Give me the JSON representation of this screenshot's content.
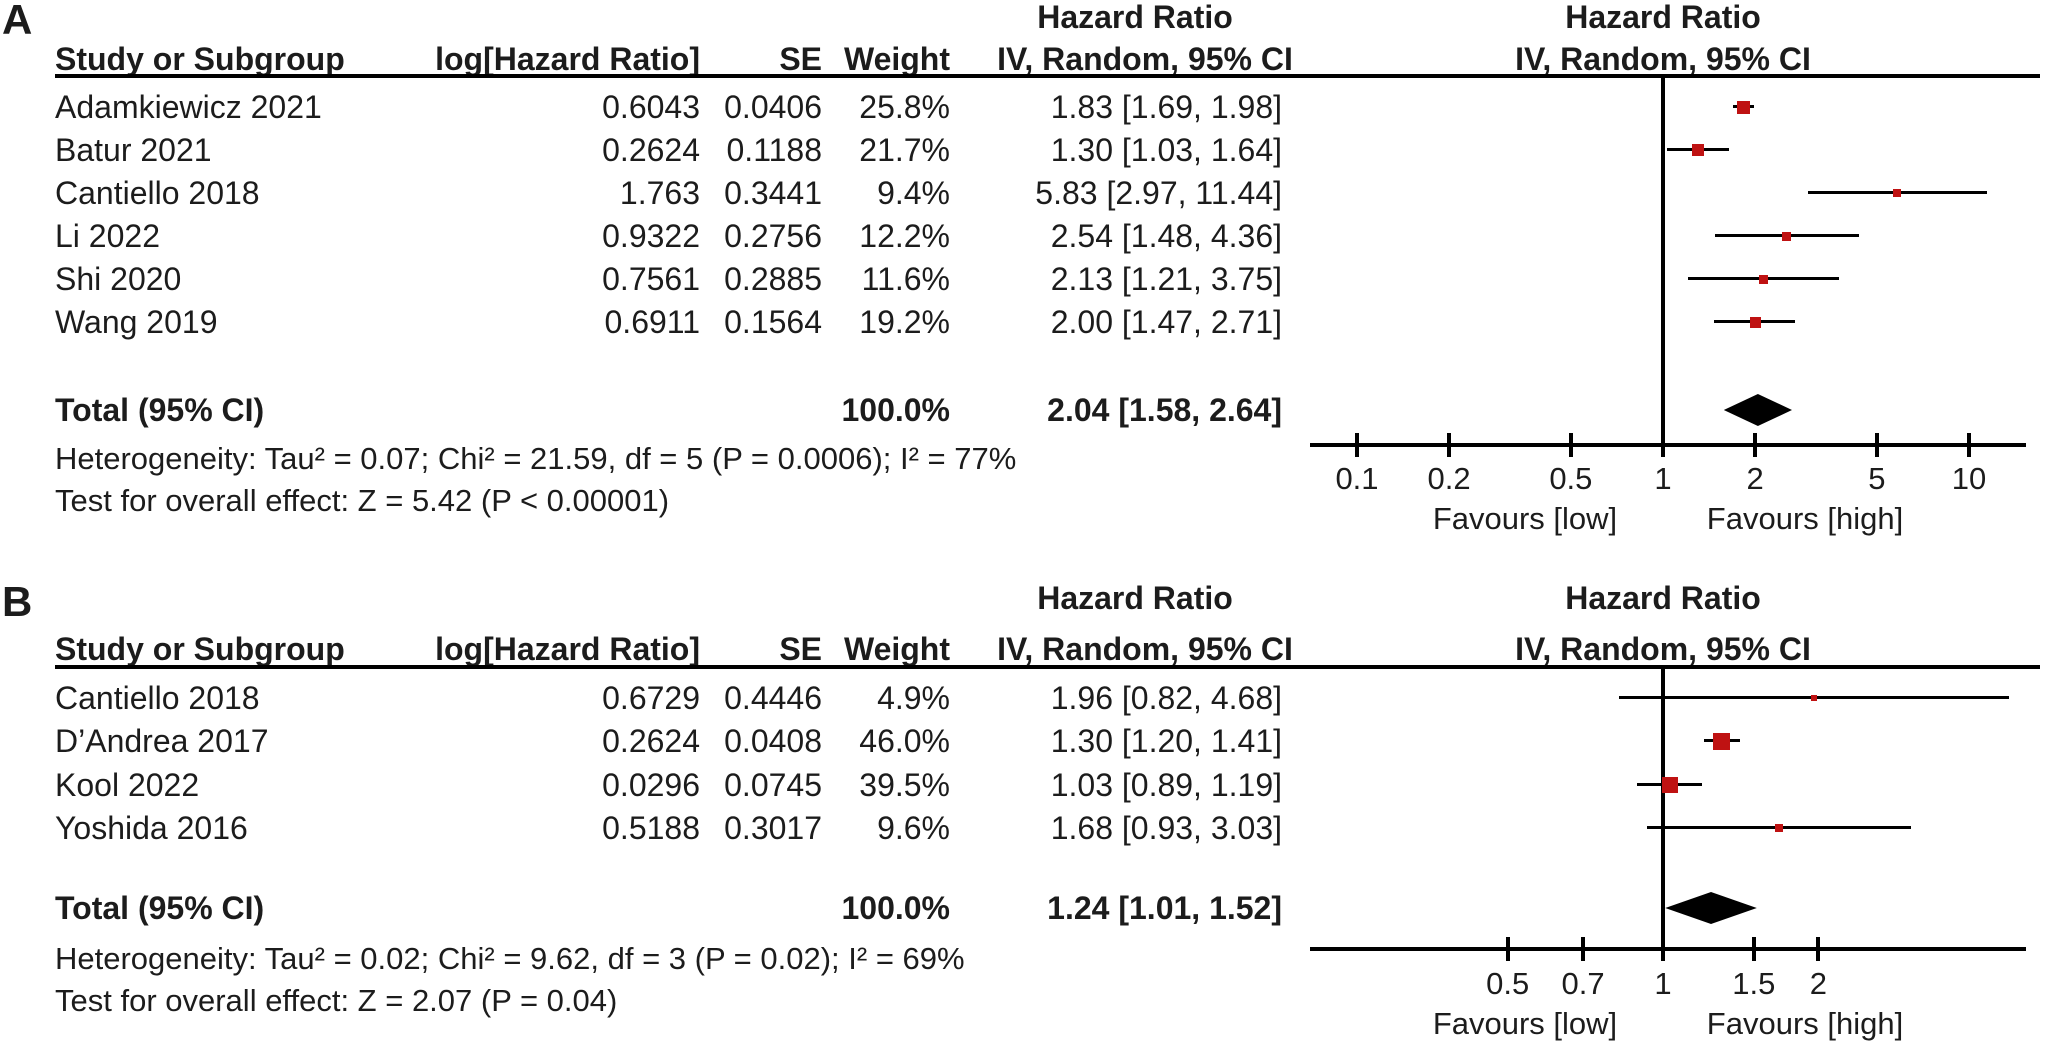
{
  "chart_data": [
    {
      "type": "scatter",
      "subtype": "forest-plot",
      "panel_label": "A",
      "header_hazard_ratio": "Hazard Ratio",
      "columns": {
        "study": "Study or Subgroup",
        "loghr": "log[Hazard Ratio]",
        "se": "SE",
        "weight": "Weight",
        "ci": "IV, Random, 95% CI"
      },
      "x_scale": "log",
      "axis_ticks": [
        0.1,
        0.2,
        0.5,
        1,
        2,
        5,
        10
      ],
      "favours_left": "Favours [low]",
      "favours_right": "Favours [high]",
      "marker_color": "#bf1212",
      "studies": [
        {
          "study": "Adamkiewicz 2021",
          "loghr": "0.6043",
          "se": "0.0406",
          "weight": "25.8%",
          "weight_val": 25.8,
          "ci_text": "1.83 [1.69, 1.98]",
          "hr": 1.83,
          "lo": 1.69,
          "hi": 1.98
        },
        {
          "study": "Batur 2021",
          "loghr": "0.2624",
          "se": "0.1188",
          "weight": "21.7%",
          "weight_val": 21.7,
          "ci_text": "1.30 [1.03, 1.64]",
          "hr": 1.3,
          "lo": 1.03,
          "hi": 1.64
        },
        {
          "study": "Cantiello 2018",
          "loghr": "1.763",
          "se": "0.3441",
          "weight": "9.4%",
          "weight_val": 9.4,
          "ci_text": "5.83 [2.97, 11.44]",
          "hr": 5.83,
          "lo": 2.97,
          "hi": 11.44
        },
        {
          "study": "Li 2022",
          "loghr": "0.9322",
          "se": "0.2756",
          "weight": "12.2%",
          "weight_val": 12.2,
          "ci_text": "2.54 [1.48, 4.36]",
          "hr": 2.54,
          "lo": 1.48,
          "hi": 4.36
        },
        {
          "study": "Shi 2020",
          "loghr": "0.7561",
          "se": "0.2885",
          "weight": "11.6%",
          "weight_val": 11.6,
          "ci_text": "2.13 [1.21, 3.75]",
          "hr": 2.13,
          "lo": 1.21,
          "hi": 3.75
        },
        {
          "study": "Wang 2019",
          "loghr": "0.6911",
          "se": "0.1564",
          "weight": "19.2%",
          "weight_val": 19.2,
          "ci_text": "2.00 [1.47, 2.71]",
          "hr": 2.0,
          "lo": 1.47,
          "hi": 2.71
        }
      ],
      "total": {
        "label": "Total (95% CI)",
        "weight": "100.0%",
        "ci_text": "2.04 [1.58, 2.64]",
        "hr": 2.04,
        "lo": 1.58,
        "hi": 2.64
      },
      "heterogeneity": "Heterogeneity: Tau² = 0.07; Chi² = 21.59, df = 5 (P = 0.0006); I² = 77%",
      "overall_effect": "Test for overall effect: Z = 5.42 (P < 0.00001)"
    },
    {
      "type": "scatter",
      "subtype": "forest-plot",
      "panel_label": "B",
      "header_hazard_ratio": "Hazard Ratio",
      "columns": {
        "study": "Study or Subgroup",
        "loghr": "log[Hazard Ratio]",
        "se": "SE",
        "weight": "Weight",
        "ci": "IV, Random, 95% CI"
      },
      "x_scale": "log",
      "axis_ticks": [
        0.5,
        0.7,
        1,
        1.5,
        2
      ],
      "favours_left": "Favours [low]",
      "favours_right": "Favours [high]",
      "marker_color": "#bf1212",
      "studies": [
        {
          "study": "Cantiello 2018",
          "loghr": "0.6729",
          "se": "0.4446",
          "weight": "4.9%",
          "weight_val": 4.9,
          "ci_text": "1.96 [0.82, 4.68]",
          "hr": 1.96,
          "lo": 0.82,
          "hi": 4.68
        },
        {
          "study": "D’Andrea 2017",
          "loghr": "0.2624",
          "se": "0.0408",
          "weight": "46.0%",
          "weight_val": 46.0,
          "ci_text": "1.30 [1.20, 1.41]",
          "hr": 1.3,
          "lo": 1.2,
          "hi": 1.41
        },
        {
          "study": "Kool 2022",
          "loghr": "0.0296",
          "se": "0.0745",
          "weight": "39.5%",
          "weight_val": 39.5,
          "ci_text": "1.03 [0.89, 1.19]",
          "hr": 1.03,
          "lo": 0.89,
          "hi": 1.19
        },
        {
          "study": "Yoshida 2016",
          "loghr": "0.5188",
          "se": "0.3017",
          "weight": "9.6%",
          "weight_val": 9.6,
          "ci_text": "1.68 [0.93, 3.03]",
          "hr": 1.68,
          "lo": 0.93,
          "hi": 3.03
        }
      ],
      "total": {
        "label": "Total (95% CI)",
        "weight": "100.0%",
        "ci_text": "1.24 [1.01, 1.52]",
        "hr": 1.24,
        "lo": 1.01,
        "hi": 1.52
      },
      "heterogeneity": "Heterogeneity: Tau² = 0.02; Chi² = 9.62, df = 3 (P = 0.02); I² = 69%",
      "overall_effect": "Test for overall effect: Z = 2.07 (P = 0.04)"
    }
  ]
}
